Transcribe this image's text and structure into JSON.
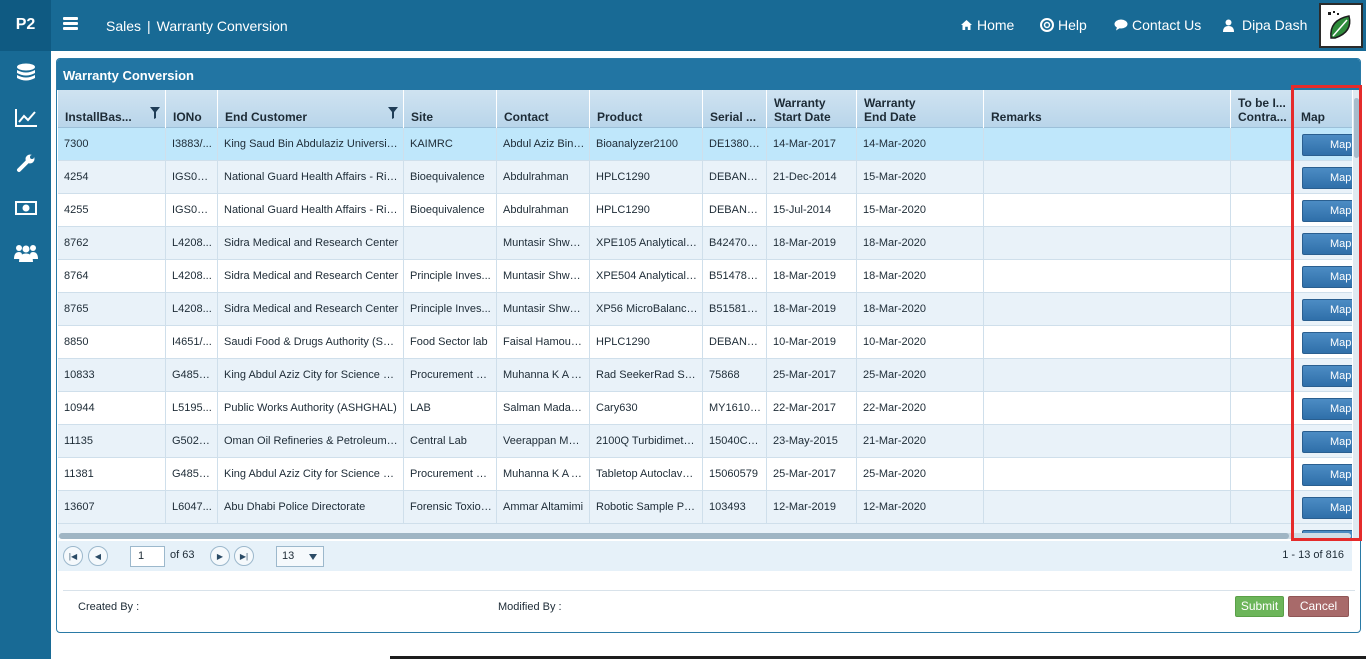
{
  "app": {
    "brand": "P2"
  },
  "breadcrumb": {
    "section": "Sales",
    "separator": "|",
    "page": "Warranty Conversion"
  },
  "topnav": {
    "home": "Home",
    "help": "Help",
    "contact": "Contact Us",
    "user": "Dipa Dash"
  },
  "sidebar": {
    "items": [
      "database-icon",
      "chart-icon",
      "wrench-icon",
      "money-icon",
      "users-icon"
    ]
  },
  "panel": {
    "title": "Warranty Conversion"
  },
  "grid": {
    "columns": [
      {
        "label": "InstallBas...",
        "filter": true
      },
      {
        "label": "IONo",
        "filter": false
      },
      {
        "label": "End Customer",
        "filter": true
      },
      {
        "label": "Site",
        "filter": false
      },
      {
        "label": "Contact",
        "filter": false
      },
      {
        "label": "Product",
        "filter": false
      },
      {
        "label": "Serial ...",
        "filter": false
      },
      {
        "label1": "Warranty",
        "label2": "Start Date",
        "filter": false
      },
      {
        "label1": "Warranty",
        "label2": "End Date",
        "filter": false
      },
      {
        "label": "Remarks",
        "filter": false
      },
      {
        "label1": "To be I...",
        "label2": "Contra...",
        "filter": false
      },
      {
        "label": "Map",
        "filter": false
      }
    ],
    "map_button_label": "Map",
    "rows": [
      [
        "7300",
        "I3883/...",
        "King Saud Bin Abdulaziz University...",
        "KAIMRC",
        "Abdul Aziz Bin ...",
        "Bioanalyzer2100",
        "DE13805...",
        "14-Mar-2017",
        "14-Mar-2020",
        "",
        ""
      ],
      [
        "4254",
        "IGS036...",
        "National Guard Health Affairs - Riy...",
        "Bioequivalence",
        "Abdulrahman",
        "HPLC1290",
        "DEBAN0...",
        "21-Dec-2014",
        "15-Mar-2020",
        "",
        ""
      ],
      [
        "4255",
        "IGS036...",
        "National Guard Health Affairs - Riy...",
        "Bioequivalence",
        "Abdulrahman",
        "HPLC1290",
        "DEBAN0...",
        "15-Jul-2014",
        "15-Mar-2020",
        "",
        ""
      ],
      [
        "8762",
        "L4208...",
        "Sidra Medical and Research Center",
        "",
        "Muntasir Shwai...",
        "XPE105 Analytical B...",
        "B424708...",
        "18-Mar-2019",
        "18-Mar-2020",
        "",
        ""
      ],
      [
        "8764",
        "L4208...",
        "Sidra Medical and Research Center",
        "Principle Inves...",
        "Muntasir Shwai...",
        "XPE504 Analytical B...",
        "B514788...",
        "18-Mar-2019",
        "18-Mar-2020",
        "",
        ""
      ],
      [
        "8765",
        "L4208...",
        "Sidra Medical and Research Center",
        "Principle Inves...",
        "Muntasir Shwai...",
        "XP56 MicroBalance...",
        "B515819...",
        "18-Mar-2019",
        "18-Mar-2020",
        "",
        ""
      ],
      [
        "8850",
        "I4651/...",
        "Saudi Food & Drugs Authority (SFD...",
        "Food Sector lab",
        "Faisal Hamoud ...",
        "HPLC1290",
        "DEBAN0...",
        "10-Mar-2019",
        "10-Mar-2020",
        "",
        ""
      ],
      [
        "10833",
        "G4858...",
        "King Abdul Aziz City for Science & ...",
        "Procurement &...",
        "Muhanna K A Al...",
        "Rad SeekerRad See...",
        "75868",
        "25-Mar-2017",
        "25-Mar-2020",
        "",
        ""
      ],
      [
        "10944",
        "L5195...",
        "Public Works Authority (ASHGHAL)",
        "LAB",
        "Salman Madam...",
        "Cary630",
        "MY16102...",
        "22-Mar-2017",
        "22-Mar-2020",
        "",
        ""
      ],
      [
        "11135",
        "G5023...",
        "Oman Oil Refineries & Petroleum I...",
        "Central Lab",
        "Veerappan Mur...",
        "2100Q Turbidimeter...",
        "15040C0...",
        "23-May-2015",
        "21-Mar-2020",
        "",
        ""
      ],
      [
        "11381",
        "G4858...",
        "King Abdul Aziz City for Science & ...",
        "Procurement &...",
        "Muhanna K A Al...",
        "Tabletop Autoclave ...",
        "15060579",
        "25-Mar-2017",
        "25-Mar-2020",
        "",
        ""
      ],
      [
        "13607",
        "L6047...",
        "Abu Dhabi Police Directorate",
        "Forensic Toxioc...",
        "Ammar Altamimi",
        "Robotic Sample Pre...",
        "103493",
        "12-Mar-2019",
        "12-Mar-2020",
        "",
        ""
      ]
    ]
  },
  "pager": {
    "page": "1",
    "of": "of 63",
    "page_size": "13",
    "range": "1 - 13 of 816"
  },
  "footer": {
    "created_by": "Created By :",
    "modified_by": "Modified By :",
    "submit": "Submit",
    "cancel": "Cancel"
  }
}
